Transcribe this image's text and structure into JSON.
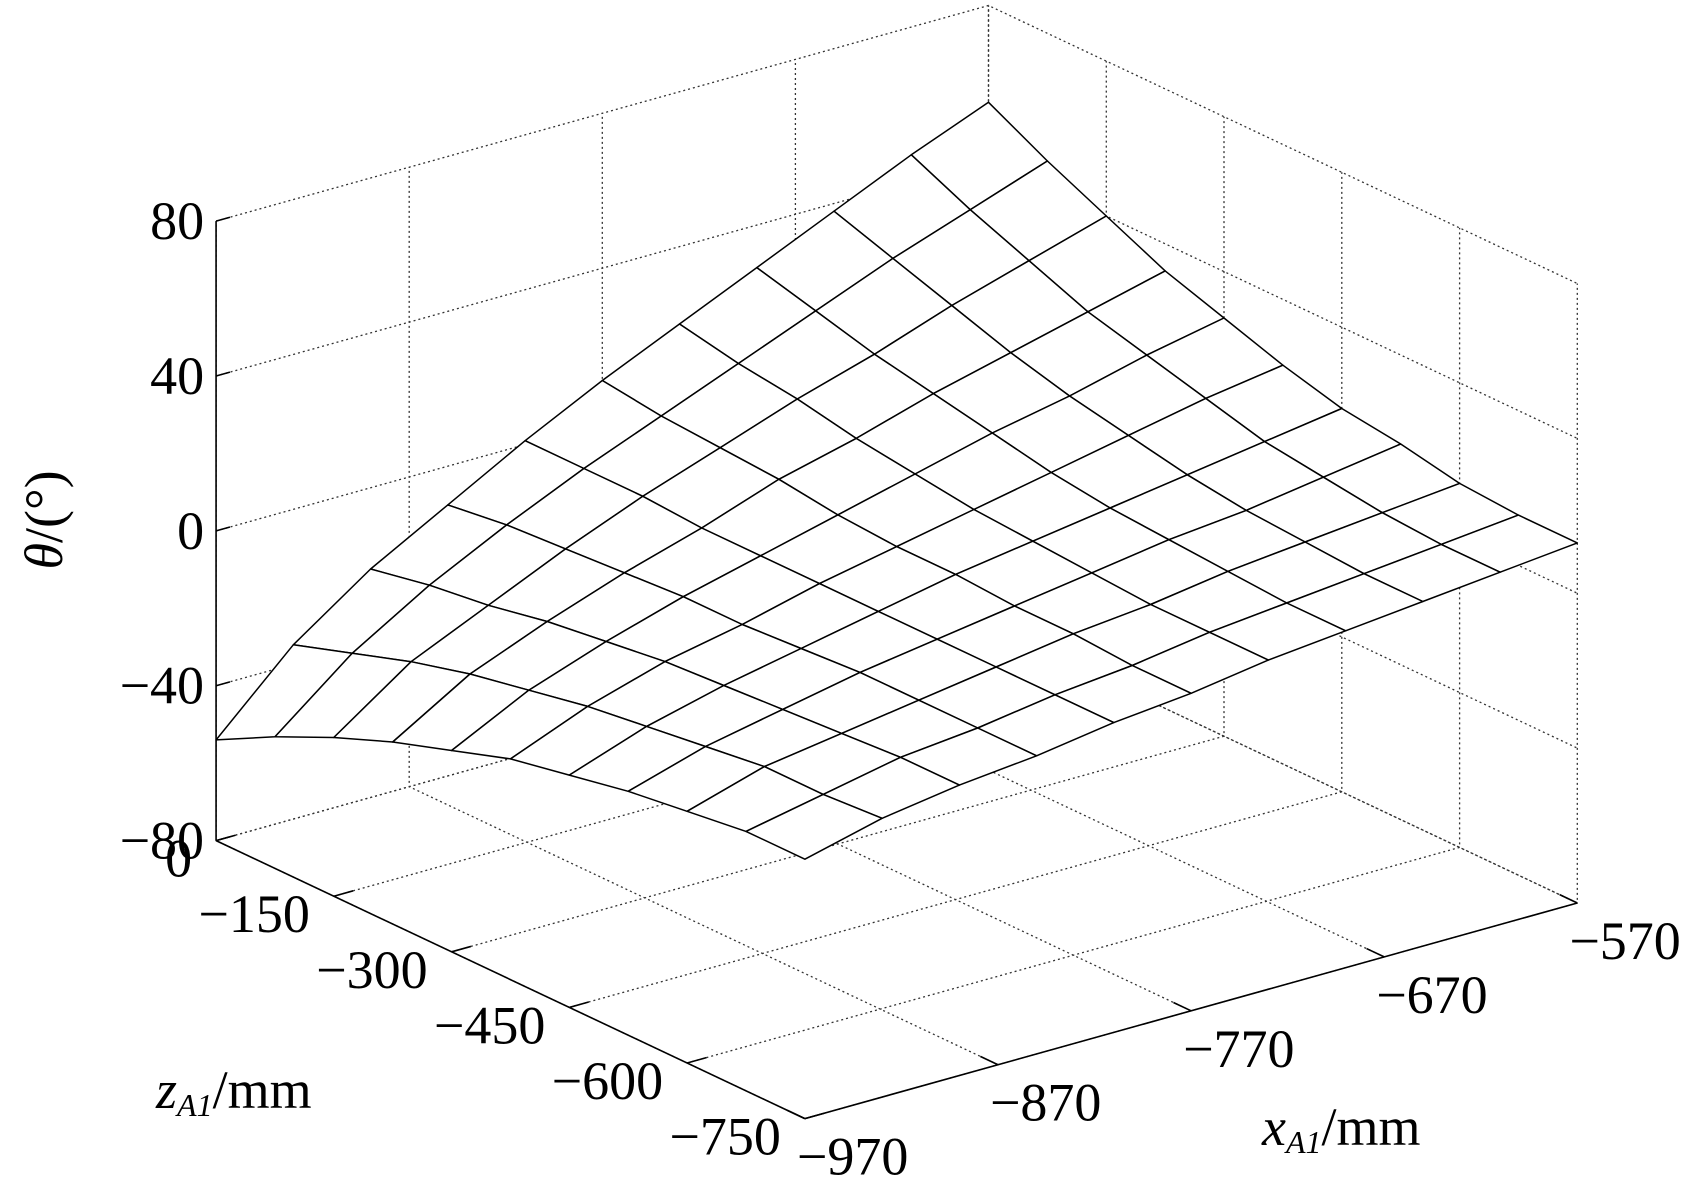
{
  "chart_data": {
    "type": "surface3d",
    "x": [
      -970,
      -930,
      -890,
      -850,
      -810,
      -770,
      -730,
      -690,
      -650,
      -610,
      -570
    ],
    "z": [
      0,
      -75,
      -150,
      -225,
      -300,
      -375,
      -450,
      -525,
      -600,
      -675,
      -750
    ],
    "values": [
      [
        -54,
        -35,
        -21,
        -10,
        1,
        11,
        20,
        29,
        38,
        47,
        55
      ],
      [
        -46,
        -30,
        -18,
        -8,
        1,
        9,
        17,
        25,
        33,
        40,
        47
      ],
      [
        -39,
        -25,
        -16,
        -7,
        1,
        8,
        15,
        21,
        28,
        34,
        40
      ],
      [
        -33,
        -21,
        -13,
        -6,
        0,
        7,
        12,
        18,
        23,
        28,
        33
      ],
      [
        -28,
        -18,
        -11,
        -5,
        0,
        5,
        10,
        15,
        19,
        24,
        28
      ],
      [
        -23,
        -15,
        -9,
        -5,
        0,
        4,
        8,
        12,
        16,
        20,
        23
      ],
      [
        -20,
        -13,
        -8,
        -4,
        0,
        4,
        7,
        10,
        13,
        16,
        19
      ],
      [
        -17,
        -11,
        -7,
        -3,
        0,
        3,
        6,
        9,
        11,
        14,
        17
      ],
      [
        -15,
        -9,
        -6,
        -3,
        0,
        3,
        5,
        8,
        10,
        12,
        14
      ],
      [
        -13,
        -9,
        -5,
        -3,
        0,
        2,
        5,
        7,
        9,
        11,
        13
      ],
      [
        -13,
        -8,
        -5,
        -3,
        0,
        2,
        5,
        7,
        9,
        11,
        13
      ]
    ],
    "xlim": [
      -970,
      -570
    ],
    "xticks": [
      {
        "value": -970,
        "label": "−970"
      },
      {
        "value": -870,
        "label": "−870"
      },
      {
        "value": -770,
        "label": "−770"
      },
      {
        "value": -670,
        "label": "−670"
      },
      {
        "value": -570,
        "label": "−570"
      }
    ],
    "zlim": [
      0,
      -750
    ],
    "zticks": [
      0,
      {
        "value": -150,
        "label": "−150"
      },
      {
        "value": -300,
        "label": "−300"
      },
      {
        "value": -450,
        "label": "−450"
      },
      {
        "value": -600,
        "label": "−600"
      },
      {
        "value": -750,
        "label": "−750"
      }
    ],
    "ylim": [
      -80,
      80
    ],
    "yticks": [
      {
        "value": -80,
        "label": "−80"
      },
      {
        "value": -40,
        "label": "−40"
      },
      0,
      40,
      80
    ],
    "y_label": {
      "symbol": "θ",
      "unit": "/(°)"
    },
    "z_label": {
      "symbol": "z",
      "subscript": "A1",
      "unit": "/mm"
    },
    "x_label": {
      "symbol": "x",
      "subscript": "A1",
      "unit": "/mm"
    },
    "surface_color": "#ffffff",
    "edge_color": "#000000",
    "grid": true
  }
}
